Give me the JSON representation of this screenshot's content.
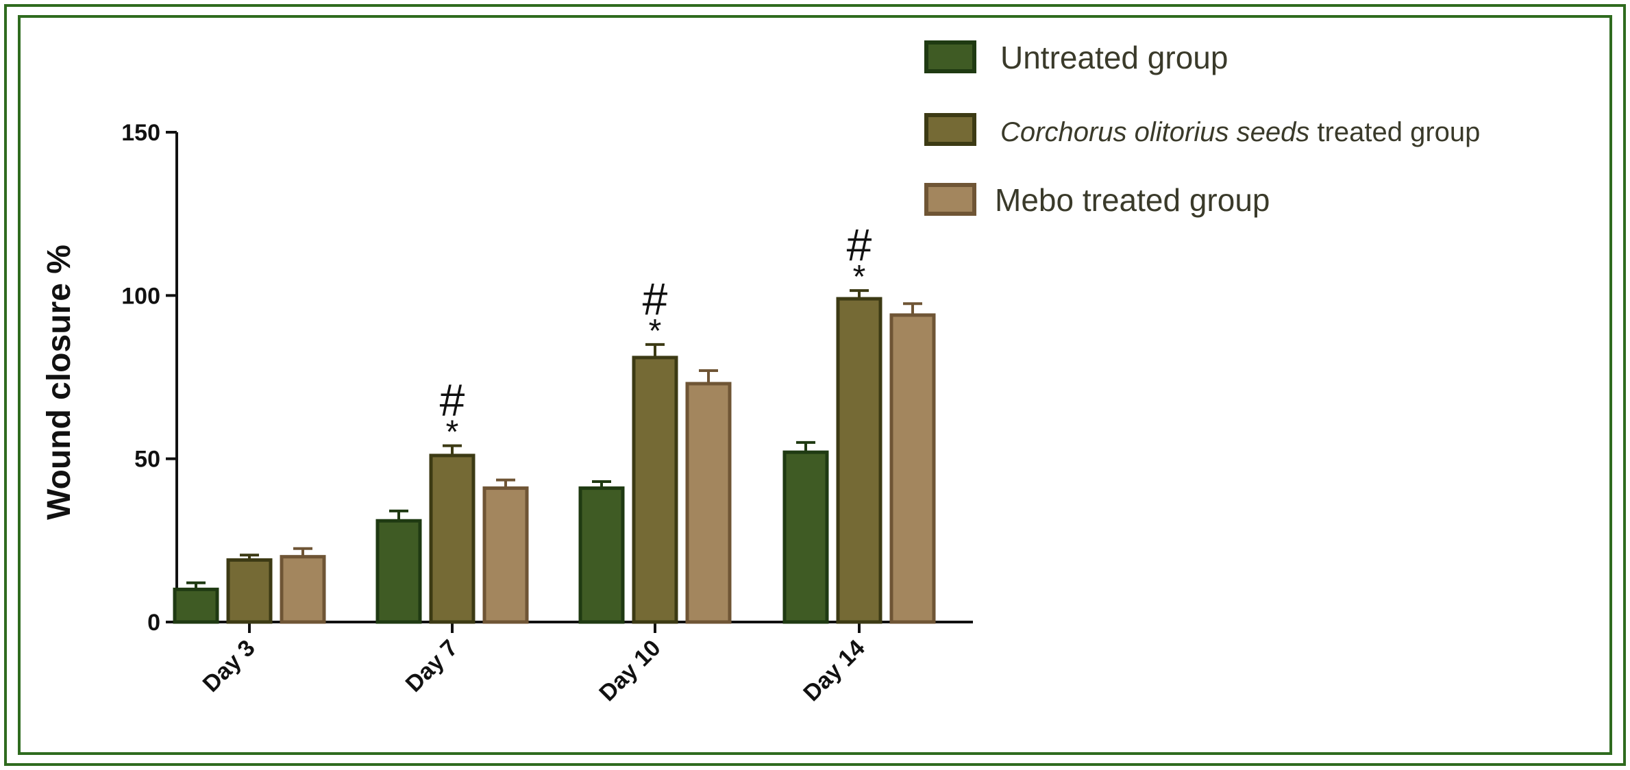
{
  "chart_data": {
    "type": "bar",
    "categories": [
      "Day 3",
      "Day 7",
      "Day 10",
      "Day 14"
    ],
    "ylabel": "Wound closure %",
    "xlabel": "",
    "ylim": [
      0,
      150
    ],
    "yticks": [
      0,
      50,
      100,
      150
    ],
    "grid": false,
    "legend_position": "top-right",
    "series": [
      {
        "name": "Untreated group",
        "values": [
          10,
          31,
          41,
          52
        ],
        "errors": [
          2,
          3,
          2,
          3
        ],
        "color": "#3f5b24",
        "edge": "#1f3a12"
      },
      {
        "name": "Corchorus olitorius seeds treated group",
        "name_italic": "Corchorus olitorius seeds",
        "name_rest": " treated group",
        "values": [
          19,
          51,
          81,
          99
        ],
        "errors": [
          1.5,
          3,
          4,
          2.5
        ],
        "color": "#756a35",
        "edge": "#3c3a14"
      },
      {
        "name": "Mebo treated group",
        "values": [
          20,
          41,
          73,
          94
        ],
        "errors": [
          2.5,
          2.5,
          4,
          3.5
        ],
        "color": "#a3865e",
        "edge": "#6f5535"
      }
    ],
    "annotations": [
      {
        "category": "Day 7",
        "series": 1,
        "marks": [
          "*",
          "#"
        ]
      },
      {
        "category": "Day 10",
        "series": 1,
        "marks": [
          "*",
          "#"
        ]
      },
      {
        "category": "Day 14",
        "series": 1,
        "marks": [
          "*",
          "#"
        ]
      }
    ]
  }
}
